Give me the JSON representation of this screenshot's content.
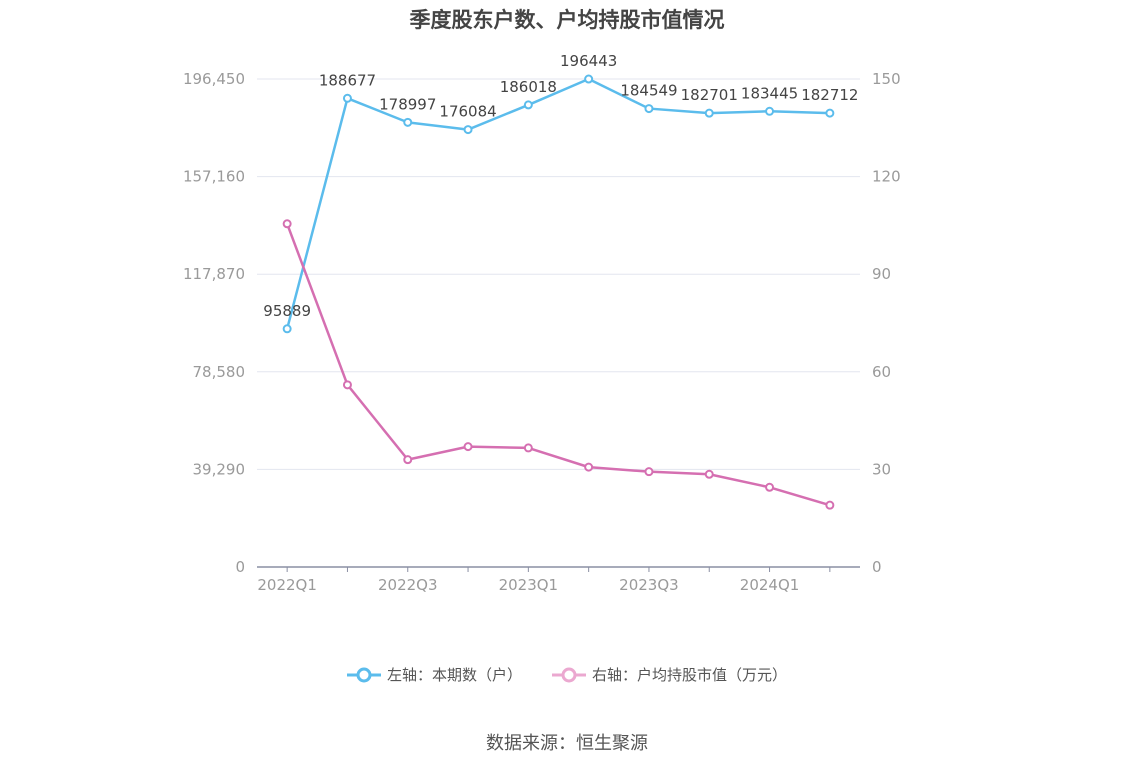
{
  "chart_data": {
    "type": "line",
    "title": "季度股东户数、户均持股市值情况",
    "categories": [
      "2022Q1",
      "2022Q2",
      "2022Q3",
      "2022Q4",
      "2023Q1",
      "2023Q2",
      "2023Q3",
      "2023Q4",
      "2024Q1",
      "2024Q2"
    ],
    "x_tick_labels": [
      "2022Q1",
      "2022Q3",
      "2023Q1",
      "2023Q3",
      "2024Q1"
    ],
    "left_axis": {
      "ylim": [
        0,
        196450
      ],
      "ticks": [
        "0",
        "39,290",
        "78,580",
        "117,870",
        "157,160",
        "196,450"
      ]
    },
    "right_axis": {
      "ylim": [
        0,
        150
      ],
      "ticks": [
        "0",
        "30",
        "60",
        "90",
        "120",
        "150"
      ]
    },
    "series": [
      {
        "name": "左轴：本期数（户）",
        "axis": "left",
        "color": "#5bbcec",
        "values": [
          95889,
          188677,
          178997,
          176084,
          186018,
          196443,
          184549,
          182701,
          183445,
          182712
        ]
      },
      {
        "name": "右轴：户均持股市值（万元）",
        "axis": "right",
        "color": "#d56fb1",
        "values": [
          105.5,
          56.0,
          33.0,
          37.0,
          36.6,
          30.7,
          29.3,
          28.5,
          24.5,
          19.0
        ]
      }
    ],
    "grid": true,
    "legend_position": "bottom"
  },
  "legend": {
    "left_label": "左轴：本期数（户）",
    "right_label": "右轴：户均持股市值（万元）"
  },
  "source": "数据来源：恒生聚源"
}
